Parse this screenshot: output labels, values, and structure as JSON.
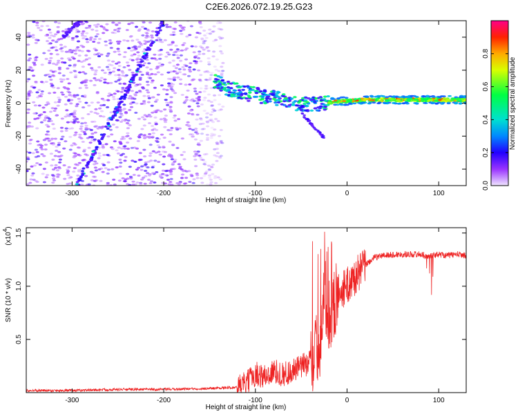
{
  "title": "C2E6.2026.072.19.25.G23",
  "colors": {
    "snr_line": "#ee2222",
    "axes": "#000000",
    "background": "#ffffff"
  },
  "chart_data": [
    {
      "type": "heatmap",
      "name": "spectrogram",
      "xlabel": "Height of straight line (km)",
      "ylabel": "Frequency (Hz)",
      "xlim": [
        -350,
        130
      ],
      "ylim": [
        -50,
        50
      ],
      "xticks": [
        -300,
        -200,
        -100,
        0,
        100
      ],
      "yticks": [
        -40,
        -20,
        0,
        20,
        40
      ],
      "colorbar": {
        "label": "Normalized spectral amplitude",
        "range": [
          0,
          1
        ],
        "ticks": [
          "0.0",
          "0.2",
          "0.4",
          "0.6",
          "0.8"
        ],
        "tick_values": [
          0.0,
          0.2,
          0.4,
          0.6,
          0.8
        ]
      },
      "features": {
        "noise_region_x": [
          -350,
          -135
        ],
        "diagonal_trace_1": {
          "from": [
            -295,
            -50
          ],
          "to": [
            -200,
            50
          ]
        },
        "diagonal_trace_2": {
          "from": [
            -310,
            40
          ],
          "to": [
            -290,
            50
          ]
        },
        "carrier_band": [
          [
            -145,
            14
          ],
          [
            -130,
            9
          ],
          [
            -110,
            6
          ],
          [
            -90,
            4
          ],
          [
            -70,
            2
          ],
          [
            -50,
            -1
          ],
          [
            -30,
            0
          ],
          [
            -10,
            1
          ],
          [
            20,
            2
          ],
          [
            60,
            2
          ],
          [
            100,
            2
          ],
          [
            130,
            2
          ]
        ],
        "branch": {
          "from": [
            -50,
            -6
          ],
          "to": [
            -25,
            -21
          ]
        }
      }
    },
    {
      "type": "line",
      "name": "snr",
      "xlabel": "Height of straight line (km)",
      "ylabel": "SNR (10 * v/v)",
      "multiplier_label": "(x10",
      "multiplier_exponent": "4",
      "multiplier_close": ")",
      "xlim": [
        -350,
        130
      ],
      "ylim": [
        0,
        1.55
      ],
      "xticks": [
        -300,
        -200,
        -100,
        0,
        100
      ],
      "yticks": [
        0.5,
        1.0,
        1.5
      ],
      "ytick_labels": [
        "0.5",
        "1.0",
        "1.5"
      ],
      "series": [
        {
          "name": "SNR",
          "x": [
            -350,
            -300,
            -250,
            -200,
            -150,
            -120,
            -110,
            -100,
            -90,
            -80,
            -70,
            -60,
            -50,
            -40,
            -30,
            -25,
            -20,
            -15,
            -10,
            -5,
            0,
            10,
            20,
            30,
            40,
            60,
            80,
            90,
            100,
            110,
            120,
            130
          ],
          "y": [
            0.02,
            0.02,
            0.03,
            0.03,
            0.04,
            0.05,
            0.08,
            0.18,
            0.15,
            0.2,
            0.17,
            0.2,
            0.24,
            0.3,
            0.45,
            0.95,
            0.75,
            0.8,
            0.95,
            0.97,
            1.0,
            1.1,
            1.2,
            1.27,
            1.29,
            1.3,
            1.3,
            1.28,
            1.3,
            1.29,
            1.3,
            1.29
          ]
        }
      ]
    }
  ]
}
